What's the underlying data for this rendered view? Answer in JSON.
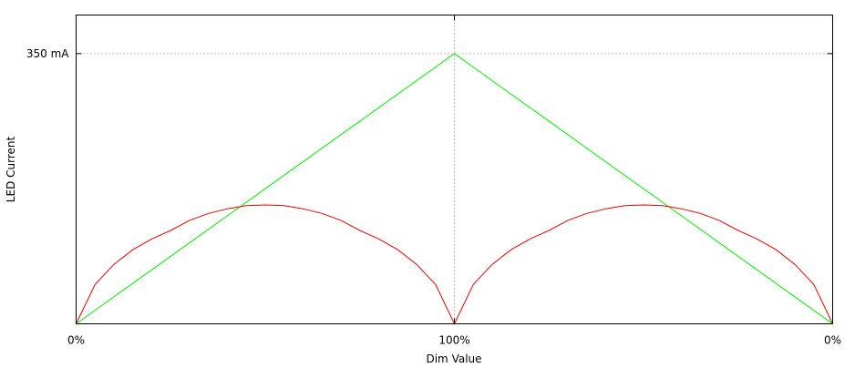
{
  "chart_data": {
    "type": "line",
    "title": "",
    "xlabel": "Dim Value",
    "ylabel": "LED Current",
    "x_ticks": [
      {
        "x": 0,
        "label": "0%"
      },
      {
        "x": 1,
        "label": "100%"
      },
      {
        "x": 2,
        "label": "0%"
      }
    ],
    "y_ticks": [
      {
        "y": 350,
        "label": "350 mA"
      }
    ],
    "xlim": [
      0,
      2
    ],
    "ylim": [
      0,
      400
    ],
    "grid": true,
    "legend": "none",
    "series": [
      {
        "color": "#00ee00",
        "x": [
          0,
          1,
          2
        ],
        "values": [
          0,
          350,
          0
        ]
      },
      {
        "color": "#ee0000",
        "x": [
          0,
          0.05,
          0.1,
          0.15,
          0.2,
          0.25,
          0.3,
          0.35,
          0.4,
          0.45,
          0.5,
          0.55,
          0.6,
          0.65,
          0.7,
          0.75,
          0.8,
          0.85,
          0.9,
          0.95,
          1.0,
          1.05,
          1.1,
          1.15,
          1.2,
          1.25,
          1.3,
          1.35,
          1.4,
          1.45,
          1.5,
          1.55,
          1.6,
          1.65,
          1.7,
          1.75,
          1.8,
          1.85,
          1.9,
          1.95,
          2.0
        ],
        "values": [
          0,
          51,
          77,
          96,
          110,
          121,
          134,
          143,
          149,
          153,
          154,
          153,
          149,
          143,
          134,
          121,
          110,
          96,
          77,
          51,
          0,
          51,
          77,
          96,
          110,
          121,
          134,
          143,
          149,
          153,
          154,
          153,
          149,
          143,
          134,
          121,
          110,
          96,
          77,
          51,
          0
        ]
      }
    ]
  }
}
